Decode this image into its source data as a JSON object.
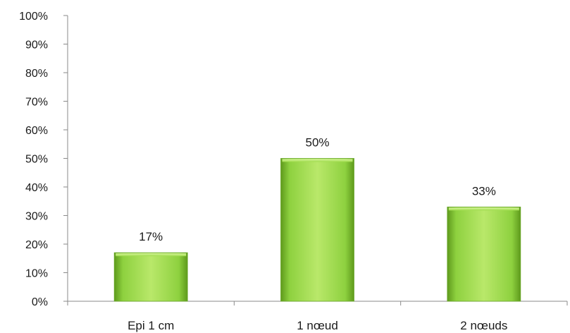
{
  "chart_data": {
    "type": "bar",
    "categories": [
      "Epi 1 cm",
      "1 nœud",
      "2 nœuds"
    ],
    "values": [
      17,
      50,
      33
    ],
    "data_labels": [
      "17%",
      "50%",
      "33%"
    ],
    "y_ticks": [
      "0%",
      "10%",
      "20%",
      "30%",
      "40%",
      "50%",
      "60%",
      "70%",
      "80%",
      "90%",
      "100%"
    ],
    "ylim": [
      0,
      100
    ],
    "grid": false,
    "legend": "none",
    "colors": {
      "bar_light": "#b9e86a",
      "bar_mid": "#8ed13f",
      "bar_dark": "#5e9a1c",
      "axis": "#8a8a8a"
    }
  }
}
